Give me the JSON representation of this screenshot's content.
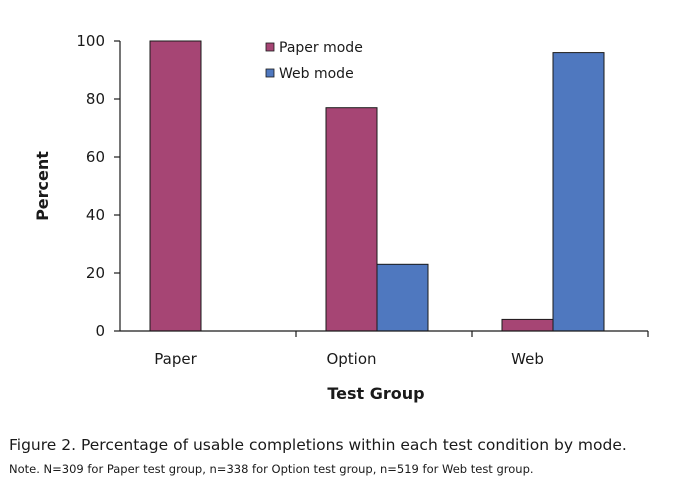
{
  "chart_data": {
    "type": "bar",
    "categories": [
      "Paper",
      "Option",
      "Web"
    ],
    "series": [
      {
        "name": "Paper mode",
        "color": "#a64574",
        "values": [
          100,
          77,
          4
        ]
      },
      {
        "name": "Web mode",
        "color": "#4f78bf",
        "values": [
          0,
          23,
          96
        ]
      }
    ],
    "xlabel": "Test Group",
    "ylabel": "Percent",
    "ylim": [
      0,
      100
    ],
    "yticks": [
      "0",
      "20",
      "40",
      "60",
      "80",
      "100"
    ],
    "grid": false,
    "legend_position": "top-center"
  },
  "caption": {
    "figure": "Figure 2. Percentage of usable completions within each test condition by mode.",
    "note": "Note. N=309 for Paper test group, n=338 for Option test group, n=519 for Web test group."
  }
}
